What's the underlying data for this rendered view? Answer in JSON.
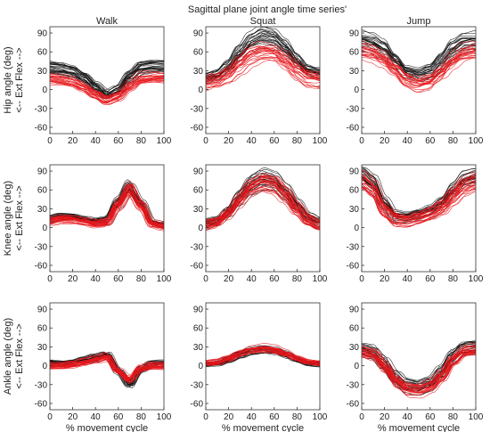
{
  "figure": {
    "title": "Sagittal plane joint angle time series'",
    "column_titles": [
      "Walk",
      "Squat",
      "Jump"
    ],
    "row_labels": [
      [
        "Hip angle (deg)",
        "<-- Ext   Flex -->"
      ],
      [
        "Knee angle (deg)",
        "<-- Ext   Flex -->"
      ],
      [
        "Ankle angle (deg)",
        "<-- Ext   Flex -->"
      ]
    ],
    "xlabel": "% movement cycle"
  },
  "colors": {
    "group_a": "#111111",
    "group_b": "#e8161b"
  },
  "chart_data": {
    "type": "line",
    "layout": "3x3 small multiples",
    "xlim": [
      0,
      100
    ],
    "ylim": [
      -70,
      100
    ],
    "xticks": [
      0,
      20,
      40,
      60,
      80,
      100
    ],
    "yticks": [
      90,
      60,
      30,
      0,
      -30,
      -60
    ],
    "xtick_labels": [
      "0",
      "20",
      "40",
      "60",
      "80",
      "100"
    ],
    "ytick_labels": [
      "90",
      "60",
      "30",
      "0",
      "-30",
      "-60"
    ],
    "x": [
      0,
      10,
      20,
      30,
      40,
      50,
      60,
      70,
      80,
      90,
      100
    ],
    "panels": [
      {
        "row": 0,
        "col": 0,
        "black": {
          "mean": [
            36,
            34,
            30,
            20,
            5,
            -8,
            0,
            22,
            36,
            38,
            38
          ],
          "spread": 7,
          "n": 26
        },
        "red": {
          "mean": [
            18,
            16,
            13,
            5,
            -6,
            -16,
            -10,
            6,
            18,
            20,
            20
          ],
          "spread": 8,
          "n": 24
        }
      },
      {
        "row": 0,
        "col": 1,
        "black": {
          "mean": [
            18,
            22,
            36,
            58,
            76,
            84,
            80,
            66,
            46,
            30,
            26
          ],
          "spread": 8,
          "n": 22
        },
        "red": {
          "mean": [
            10,
            14,
            24,
            40,
            54,
            60,
            58,
            46,
            30,
            18,
            14
          ],
          "spread": 14,
          "n": 22
        }
      },
      {
        "row": 0,
        "col": 2,
        "black": {
          "mean": [
            80,
            76,
            66,
            46,
            28,
            24,
            30,
            46,
            66,
            76,
            78
          ],
          "spread": 10,
          "n": 22
        },
        "red": {
          "mean": [
            62,
            58,
            48,
            32,
            14,
            8,
            12,
            26,
            44,
            56,
            60
          ],
          "spread": 14,
          "n": 22
        }
      },
      {
        "row": 1,
        "col": 0,
        "black": {
          "mean": [
            14,
            18,
            18,
            14,
            10,
            12,
            40,
            66,
            40,
            8,
            4
          ],
          "spread": 5,
          "n": 22
        },
        "red": {
          "mean": [
            10,
            14,
            14,
            10,
            6,
            8,
            36,
            62,
            36,
            6,
            2
          ],
          "spread": 6,
          "n": 28
        }
      },
      {
        "row": 1,
        "col": 1,
        "black": {
          "mean": [
            6,
            10,
            26,
            50,
            70,
            78,
            74,
            58,
            36,
            16,
            8
          ],
          "spread": 7,
          "n": 22
        },
        "red": {
          "mean": [
            4,
            8,
            22,
            44,
            64,
            72,
            68,
            52,
            30,
            12,
            4
          ],
          "spread": 8,
          "n": 26
        }
      },
      {
        "row": 1,
        "col": 2,
        "black": {
          "mean": [
            80,
            68,
            36,
            16,
            14,
            18,
            24,
            36,
            56,
            72,
            76
          ],
          "spread": 9,
          "n": 22
        },
        "red": {
          "mean": [
            72,
            58,
            26,
            12,
            10,
            14,
            20,
            30,
            48,
            64,
            70
          ],
          "spread": 9,
          "n": 26
        }
      },
      {
        "row": 2,
        "col": 0,
        "black": {
          "mean": [
            4,
            3,
            4,
            8,
            12,
            16,
            -10,
            -30,
            -6,
            2,
            3
          ],
          "spread": 5,
          "n": 22
        },
        "red": {
          "mean": [
            0,
            0,
            2,
            6,
            10,
            14,
            -8,
            -22,
            -4,
            0,
            0
          ],
          "spread": 5,
          "n": 28
        }
      },
      {
        "row": 2,
        "col": 1,
        "black": {
          "mean": [
            2,
            4,
            10,
            18,
            24,
            26,
            24,
            18,
            10,
            4,
            2
          ],
          "spread": 4,
          "n": 24
        },
        "red": {
          "mean": [
            4,
            6,
            12,
            20,
            26,
            28,
            26,
            20,
            12,
            6,
            4
          ],
          "spread": 4,
          "n": 24
        }
      },
      {
        "row": 2,
        "col": 2,
        "black": {
          "mean": [
            26,
            22,
            4,
            -20,
            -34,
            -36,
            -30,
            -12,
            14,
            28,
            30
          ],
          "spread": 10,
          "n": 22
        },
        "red": {
          "mean": [
            22,
            18,
            -2,
            -24,
            -36,
            -38,
            -32,
            -16,
            10,
            24,
            26
          ],
          "spread": 9,
          "n": 26
        }
      }
    ]
  }
}
